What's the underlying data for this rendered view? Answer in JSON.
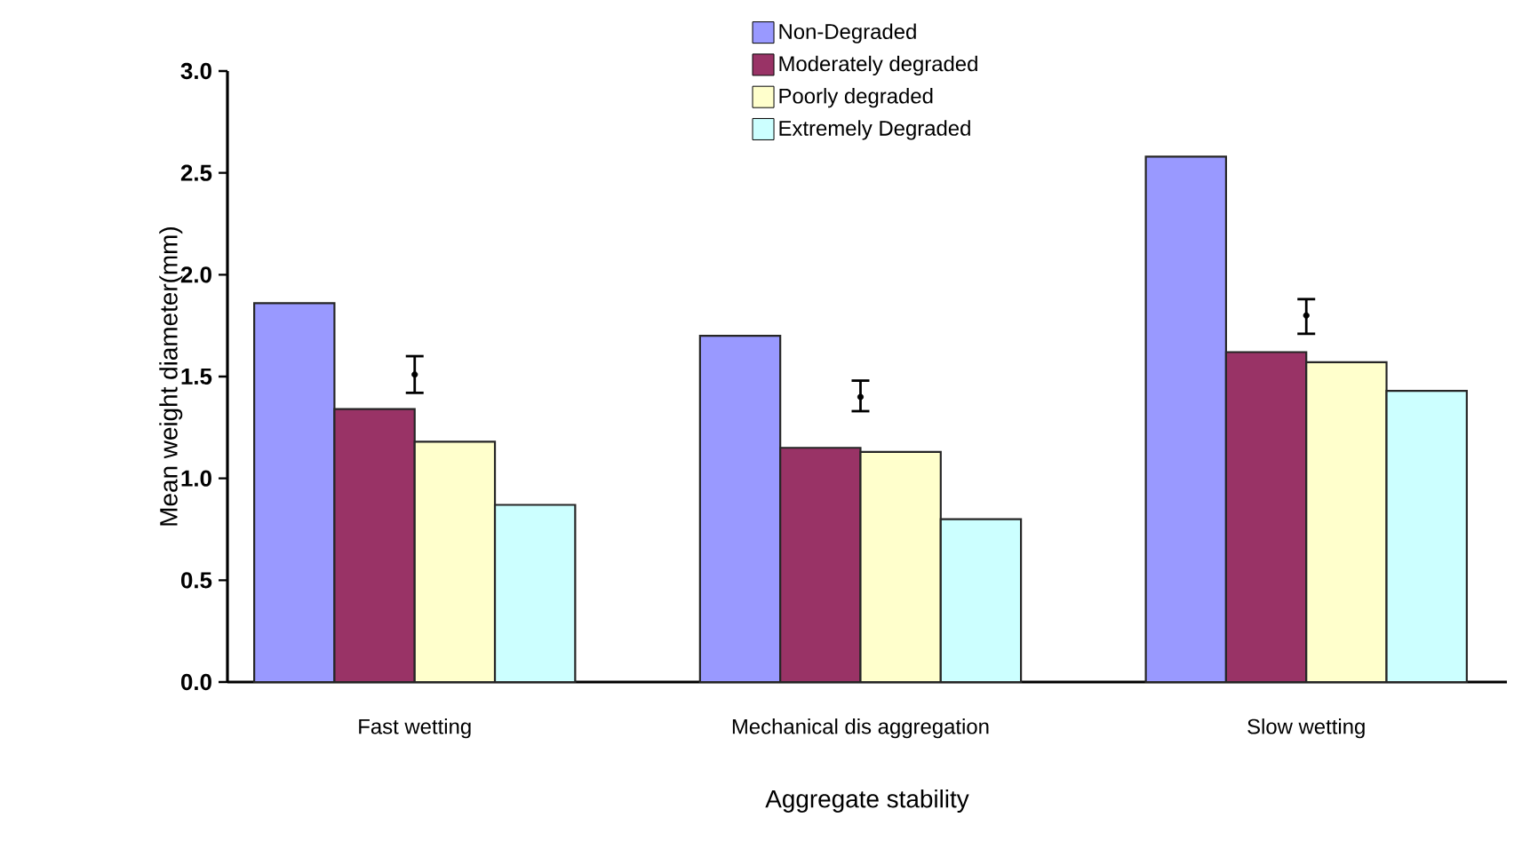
{
  "chart_data": {
    "type": "bar",
    "xlabel": "Aggregate stability",
    "ylabel": "Mean weight diameter(mm)",
    "categories": [
      "Fast wetting",
      "Mechanical dis aggregation",
      "Slow wetting"
    ],
    "series": [
      {
        "name": "Non-Degraded",
        "color": "#9999ff",
        "values": [
          1.86,
          1.7,
          2.58
        ]
      },
      {
        "name": "Moderately degraded",
        "color": "#993366",
        "values": [
          1.34,
          1.15,
          1.62
        ]
      },
      {
        "name": "Poorly degraded",
        "color": "#ffffcc",
        "values": [
          1.18,
          1.13,
          1.57
        ]
      },
      {
        "name": "Extremely Degraded",
        "color": "#ccffff",
        "values": [
          0.87,
          0.8,
          1.43
        ]
      },
      {
        "type": "scatter",
        "color": "#000000",
        "marker": "circle",
        "x": [
          "Fast wetting",
          "Mechanical dis aggregation",
          "Slow wetting"
        ],
        "values": [
          1.51,
          1.4,
          1.8
        ],
        "errors": [
          [
            1.42,
            1.6
          ],
          [
            1.33,
            1.48
          ],
          [
            1.71,
            1.88
          ]
        ]
      }
    ],
    "ylim": [
      0,
      3
    ],
    "yticks": [
      {
        "value": 0,
        "label": "0.0"
      },
      {
        "value": 0.5,
        "label": "0.5"
      },
      {
        "value": 1,
        "label": "1.0"
      },
      {
        "value": 1.5,
        "label": "1.5"
      },
      {
        "value": 2,
        "label": "2.0"
      },
      {
        "value": 2.5,
        "label": "2.5"
      },
      {
        "value": 3,
        "label": "3.0"
      }
    ],
    "grid": false,
    "legend": "top"
  }
}
